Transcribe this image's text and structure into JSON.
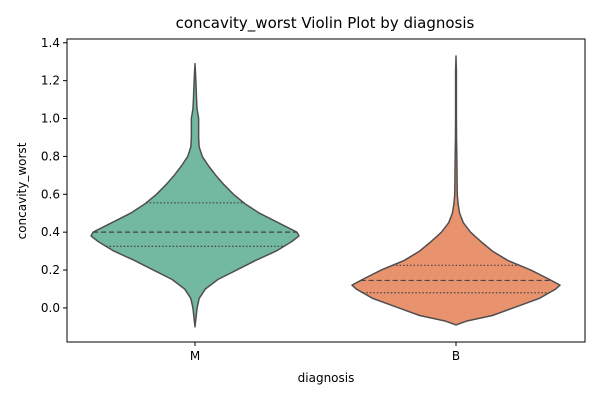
{
  "chart_data": {
    "type": "violin",
    "title": "concavity_worst Violin Plot by diagnosis",
    "xlabel": "diagnosis",
    "ylabel": "concavity_worst",
    "ylim": [
      -0.18,
      1.42
    ],
    "yticks": [
      0.0,
      0.2,
      0.4,
      0.6,
      0.8,
      1.0,
      1.2,
      1.4
    ],
    "ytick_labels": [
      "0.0",
      "0.2",
      "0.4",
      "0.6",
      "0.8",
      "1.0",
      "1.2",
      "1.4"
    ],
    "categories": [
      "M",
      "B"
    ],
    "grid": false,
    "series": [
      {
        "category": "M",
        "color": "#73b8a0",
        "density_profile": [
          [
            -0.1,
            0.0
          ],
          [
            -0.05,
            0.01
          ],
          [
            0.0,
            0.02
          ],
          [
            0.05,
            0.04
          ],
          [
            0.1,
            0.1
          ],
          [
            0.15,
            0.22
          ],
          [
            0.2,
            0.4
          ],
          [
            0.25,
            0.58
          ],
          [
            0.3,
            0.78
          ],
          [
            0.35,
            0.93
          ],
          [
            0.38,
            1.0
          ],
          [
            0.4,
            0.98
          ],
          [
            0.45,
            0.8
          ],
          [
            0.5,
            0.62
          ],
          [
            0.55,
            0.48
          ],
          [
            0.6,
            0.37
          ],
          [
            0.65,
            0.28
          ],
          [
            0.7,
            0.2
          ],
          [
            0.75,
            0.13
          ],
          [
            0.8,
            0.07
          ],
          [
            0.85,
            0.04
          ],
          [
            0.9,
            0.035
          ],
          [
            0.95,
            0.035
          ],
          [
            1.0,
            0.035
          ],
          [
            1.05,
            0.02
          ],
          [
            1.1,
            0.015
          ],
          [
            1.15,
            0.012
          ],
          [
            1.2,
            0.008
          ],
          [
            1.25,
            0.004
          ],
          [
            1.29,
            0.0
          ]
        ],
        "q1": 0.325,
        "median": 0.4,
        "q3": 0.555
      },
      {
        "category": "B",
        "color": "#e9936e",
        "density_profile": [
          [
            -0.09,
            0.0
          ],
          [
            -0.07,
            0.1
          ],
          [
            -0.04,
            0.35
          ],
          [
            0.0,
            0.55
          ],
          [
            0.05,
            0.8
          ],
          [
            0.1,
            0.96
          ],
          [
            0.12,
            1.0
          ],
          [
            0.15,
            0.9
          ],
          [
            0.2,
            0.72
          ],
          [
            0.25,
            0.5
          ],
          [
            0.3,
            0.35
          ],
          [
            0.35,
            0.24
          ],
          [
            0.4,
            0.14
          ],
          [
            0.45,
            0.07
          ],
          [
            0.5,
            0.035
          ],
          [
            0.55,
            0.02
          ],
          [
            0.6,
            0.012
          ],
          [
            0.7,
            0.01
          ],
          [
            0.8,
            0.008
          ],
          [
            0.9,
            0.005
          ],
          [
            1.0,
            0.004
          ],
          [
            1.1,
            0.004
          ],
          [
            1.2,
            0.004
          ],
          [
            1.25,
            0.004
          ],
          [
            1.33,
            0.0
          ]
        ],
        "q1": 0.08,
        "median": 0.145,
        "q3": 0.225
      }
    ]
  }
}
